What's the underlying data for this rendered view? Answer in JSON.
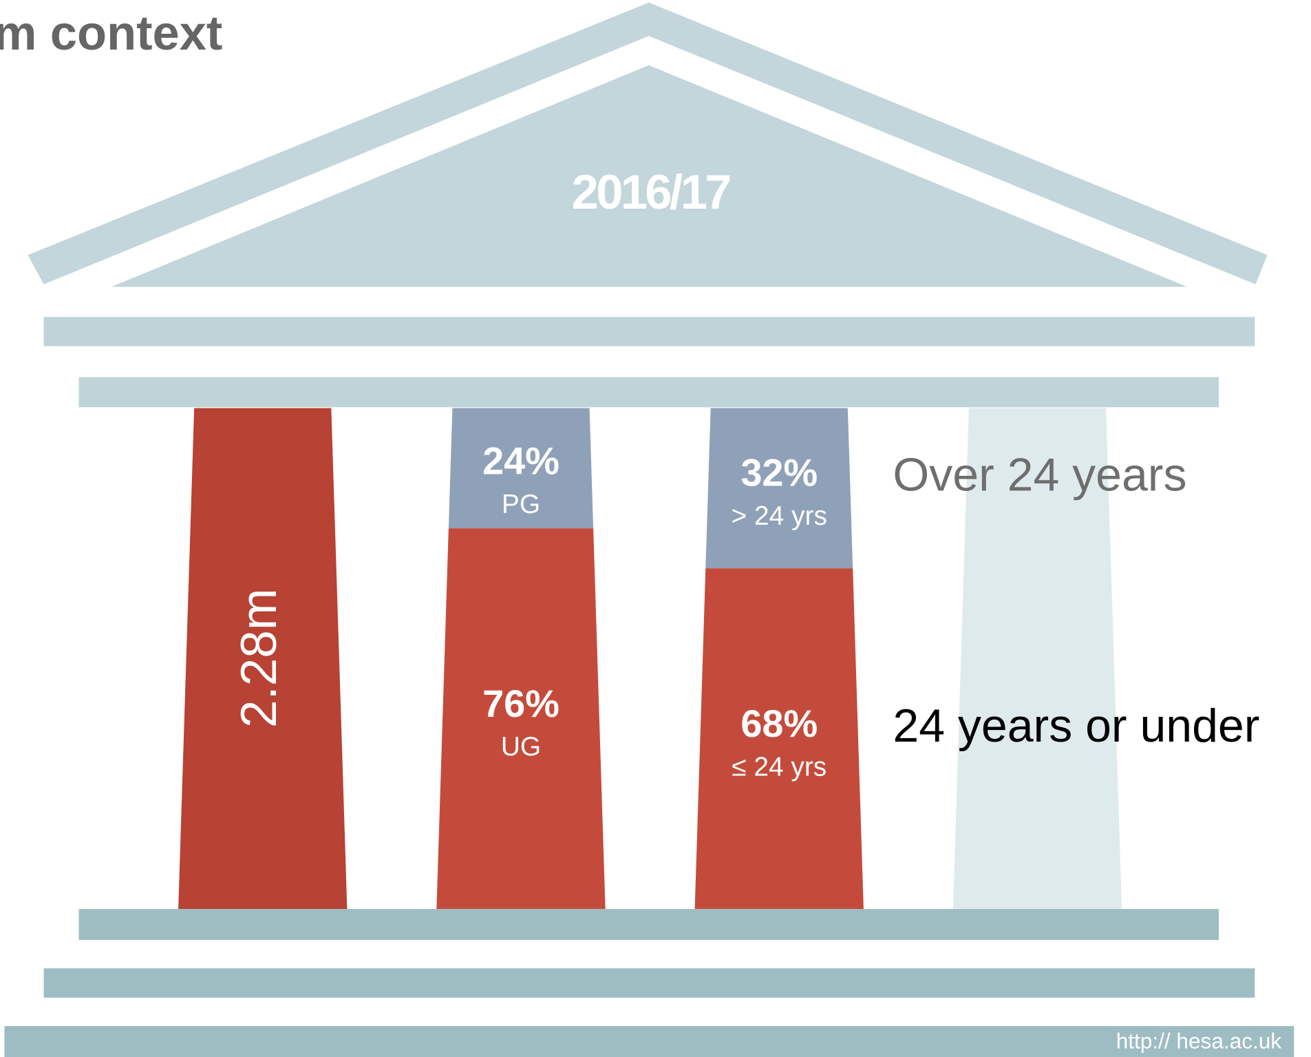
{
  "title": "m context",
  "year": "2016/17",
  "columns": [
    {
      "label": "2.28m"
    },
    {
      "segments": [
        {
          "value": 24,
          "label": "24%",
          "sub": "PG"
        },
        {
          "value": 76,
          "label": "76%",
          "sub": "UG"
        }
      ]
    },
    {
      "segments": [
        {
          "value": 32,
          "label": "32%",
          "sub": "> 24 yrs"
        },
        {
          "value": 68,
          "label": "68%",
          "sub": "≤ 24 yrs"
        }
      ]
    }
  ],
  "legend": [
    "Over 24 years",
    "24 years or under"
  ],
  "footer": "http:// hesa.ac.uk"
}
